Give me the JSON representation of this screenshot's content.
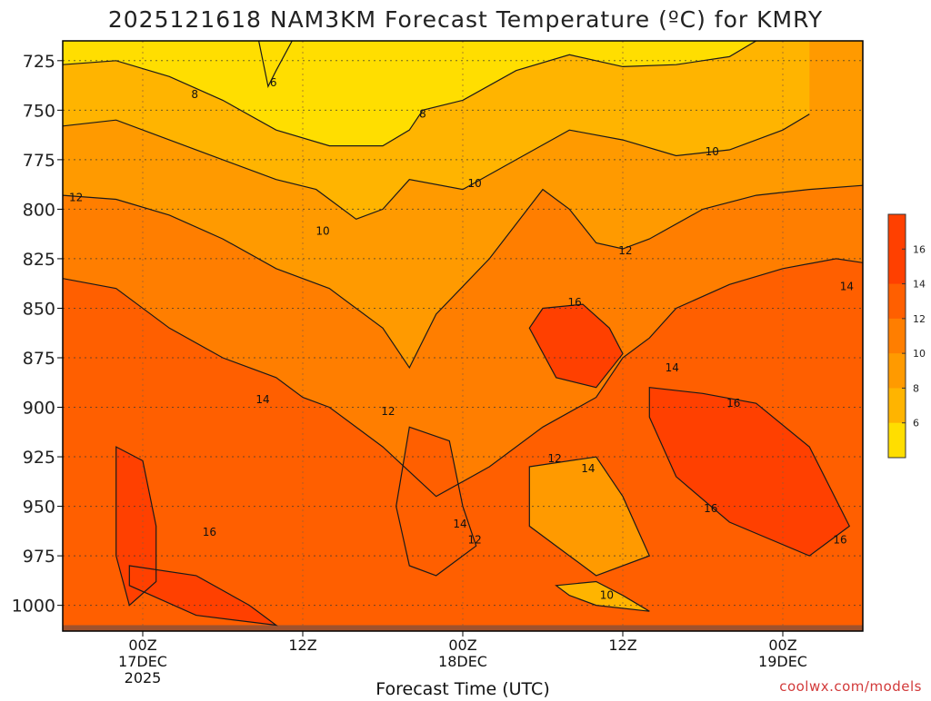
{
  "title": "2025121618 NAM3KM Forecast Temperature (ºC) for KMRY",
  "credit": "coolwx.com/models",
  "chart_data": {
    "type": "heatmap",
    "title": "2025121618 NAM3KM Forecast Temperature (ºC) for KMRY",
    "xlabel": "Forecast Time (UTC)",
    "ylabel": "",
    "x_unit": "forecast hour",
    "xlim": [
      0,
      60
    ],
    "ylim": [
      1013,
      715
    ],
    "y_ticks": [
      725,
      750,
      775,
      800,
      825,
      850,
      875,
      900,
      925,
      950,
      975,
      1000
    ],
    "x_ticks": [
      {
        "hour": 6,
        "label": "00Z",
        "line2": "17DEC",
        "line3": "2025"
      },
      {
        "hour": 18,
        "label": "12Z",
        "line2": "",
        "line3": ""
      },
      {
        "hour": 30,
        "label": "00Z",
        "line2": "18DEC",
        "line3": ""
      },
      {
        "hour": 42,
        "label": "12Z",
        "line2": "",
        "line3": ""
      },
      {
        "hour": 54,
        "label": "00Z",
        "line2": "19DEC",
        "line3": ""
      }
    ],
    "grid": true,
    "surface_pressure_approx": 1010,
    "color_scale": {
      "levels": [
        6,
        8,
        10,
        12,
        14,
        16
      ],
      "colors": [
        "#ffde00",
        "#ffb400",
        "#ff9a00",
        "#ff7e00",
        "#ff5f00",
        "#ff4000"
      ]
    },
    "legend_ticks": [
      6,
      8,
      10,
      12,
      14,
      16
    ],
    "series": [
      {
        "value": 6,
        "points": [
          [
            14.7,
            715
          ],
          [
            15.4,
            738
          ],
          [
            16.0,
            730
          ],
          [
            17.2,
            715
          ]
        ]
      },
      {
        "value": 8,
        "points": [
          [
            0,
            727
          ],
          [
            4,
            725
          ],
          [
            8,
            733
          ],
          [
            12,
            745
          ],
          [
            16,
            760
          ],
          [
            20,
            768
          ],
          [
            24,
            768
          ],
          [
            26,
            760
          ],
          [
            27,
            750
          ],
          [
            30,
            745
          ],
          [
            34,
            730
          ],
          [
            38,
            722
          ],
          [
            42,
            728
          ],
          [
            46,
            727
          ],
          [
            50,
            723
          ],
          [
            52,
            715
          ]
        ]
      },
      {
        "value": 10,
        "points": [
          [
            0,
            758
          ],
          [
            4,
            755
          ],
          [
            8,
            765
          ],
          [
            12,
            775
          ],
          [
            16,
            785
          ],
          [
            19,
            790
          ],
          [
            22,
            805
          ],
          [
            24,
            800
          ],
          [
            26,
            785
          ],
          [
            30,
            790
          ],
          [
            34,
            775
          ],
          [
            38,
            760
          ],
          [
            42,
            765
          ],
          [
            46,
            773
          ],
          [
            50,
            770
          ],
          [
            54,
            760
          ],
          [
            56,
            752
          ]
        ]
      },
      {
        "value": 12,
        "points": [
          [
            0,
            793
          ],
          [
            4,
            795
          ],
          [
            8,
            803
          ],
          [
            12,
            815
          ],
          [
            16,
            830
          ],
          [
            20,
            840
          ],
          [
            24,
            860
          ],
          [
            26,
            880
          ],
          [
            28,
            853
          ],
          [
            32,
            825
          ],
          [
            36,
            790
          ],
          [
            38,
            800
          ],
          [
            40,
            817
          ],
          [
            42,
            820
          ],
          [
            44,
            815
          ],
          [
            48,
            800
          ],
          [
            52,
            793
          ],
          [
            56,
            790
          ],
          [
            60,
            788
          ]
        ]
      },
      {
        "value": 14,
        "points": [
          [
            0,
            835
          ],
          [
            4,
            840
          ],
          [
            8,
            860
          ],
          [
            12,
            875
          ],
          [
            16,
            885
          ],
          [
            18,
            895
          ],
          [
            20,
            900
          ],
          [
            24,
            920
          ],
          [
            28,
            945
          ],
          [
            32,
            930
          ],
          [
            36,
            910
          ],
          [
            40,
            895
          ],
          [
            42,
            875
          ],
          [
            44,
            865
          ],
          [
            46,
            850
          ],
          [
            50,
            838
          ],
          [
            54,
            830
          ],
          [
            58,
            825
          ],
          [
            60,
            827
          ]
        ]
      },
      {
        "value": 16,
        "points": [
          [
            36,
            850
          ],
          [
            39,
            848
          ],
          [
            41,
            860
          ],
          [
            42,
            873
          ],
          [
            40,
            890
          ],
          [
            37,
            885
          ],
          [
            35,
            860
          ],
          [
            36,
            850
          ]
        ]
      },
      {
        "value": 16,
        "points": [
          [
            44,
            890
          ],
          [
            48,
            893
          ],
          [
            52,
            898
          ],
          [
            56,
            920
          ],
          [
            59,
            960
          ],
          [
            56,
            975
          ],
          [
            50,
            958
          ],
          [
            46,
            935
          ],
          [
            44,
            905
          ],
          [
            44,
            890
          ]
        ]
      },
      {
        "value": 16,
        "points": [
          [
            4,
            920
          ],
          [
            6,
            927
          ],
          [
            7,
            960
          ],
          [
            7,
            988
          ],
          [
            5,
            1000
          ],
          [
            4,
            975
          ],
          [
            4,
            940
          ],
          [
            4,
            920
          ]
        ]
      },
      {
        "value": 16,
        "points": [
          [
            5,
            980
          ],
          [
            10,
            985
          ],
          [
            14,
            1000
          ],
          [
            16,
            1010
          ],
          [
            10,
            1005
          ],
          [
            5,
            990
          ],
          [
            5,
            980
          ]
        ]
      },
      {
        "value": 14,
        "points": [
          [
            26,
            910
          ],
          [
            29,
            917
          ],
          [
            30,
            950
          ],
          [
            31,
            970
          ],
          [
            28,
            985
          ],
          [
            26,
            980
          ],
          [
            25,
            950
          ],
          [
            26,
            910
          ]
        ]
      },
      {
        "value": 12,
        "points": [
          [
            35,
            930
          ],
          [
            40,
            925
          ],
          [
            42,
            945
          ],
          [
            44,
            975
          ],
          [
            40,
            985
          ],
          [
            38,
            975
          ],
          [
            35,
            960
          ],
          [
            35,
            930
          ]
        ]
      },
      {
        "value": 10,
        "points": [
          [
            37,
            990
          ],
          [
            40,
            988
          ],
          [
            42,
            995
          ],
          [
            44,
            1003
          ],
          [
            40,
            1000
          ],
          [
            38,
            995
          ],
          [
            37,
            990
          ]
        ]
      }
    ],
    "contour_labels": [
      {
        "text": "6",
        "x": 15.8,
        "y": 736
      },
      {
        "text": "8",
        "x": 9.9,
        "y": 742
      },
      {
        "text": "8",
        "x": 27.0,
        "y": 752
      },
      {
        "text": "10",
        "x": 30.9,
        "y": 787
      },
      {
        "text": "10",
        "x": 19.5,
        "y": 811
      },
      {
        "text": "10",
        "x": 48.7,
        "y": 771
      },
      {
        "text": "10",
        "x": 40.8,
        "y": 995
      },
      {
        "text": "12",
        "x": 1.0,
        "y": 794
      },
      {
        "text": "12",
        "x": 42.2,
        "y": 821
      },
      {
        "text": "12",
        "x": 24.4,
        "y": 902
      },
      {
        "text": "12",
        "x": 36.9,
        "y": 926
      },
      {
        "text": "12",
        "x": 30.9,
        "y": 967
      },
      {
        "text": "14",
        "x": 15.0,
        "y": 896
      },
      {
        "text": "14",
        "x": 45.7,
        "y": 880
      },
      {
        "text": "14",
        "x": 58.8,
        "y": 839
      },
      {
        "text": "14",
        "x": 39.4,
        "y": 931
      },
      {
        "text": "14",
        "x": 29.8,
        "y": 959
      },
      {
        "text": "16",
        "x": 38.4,
        "y": 847
      },
      {
        "text": "16",
        "x": 50.3,
        "y": 898
      },
      {
        "text": "16",
        "x": 48.6,
        "y": 951
      },
      {
        "text": "16",
        "x": 58.3,
        "y": 967
      },
      {
        "text": "16",
        "x": 11.0,
        "y": 963
      }
    ]
  }
}
